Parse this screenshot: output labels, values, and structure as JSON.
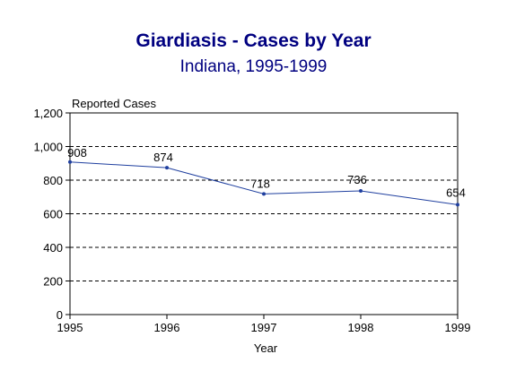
{
  "chart_data": {
    "type": "line",
    "title": "Giardiasis - Cases by Year",
    "subtitle": "Indiana, 1995-1999",
    "ylabel": "Reported Cases",
    "xlabel": "Year",
    "categories": [
      "1995",
      "1996",
      "1997",
      "1998",
      "1999"
    ],
    "values": [
      908,
      874,
      718,
      736,
      654
    ],
    "data_labels": [
      "908",
      "874",
      "718",
      "736",
      "654"
    ],
    "ylim": [
      0,
      1200
    ],
    "yticks": [
      0,
      200,
      400,
      600,
      800,
      1000,
      1200
    ],
    "ytick_labels": [
      "0",
      "200",
      "400",
      "600",
      "800",
      "1,000",
      "1,200"
    ],
    "grid": "horizontal dashed",
    "line_color": "#1f3f9f"
  }
}
